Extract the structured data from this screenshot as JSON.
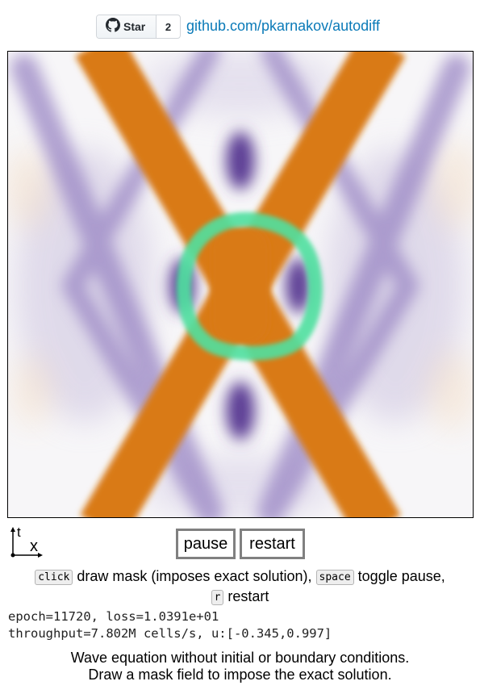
{
  "header": {
    "star_label": "Star",
    "star_count": "2",
    "repo_link": "github.com/pkarnakov/autodiff"
  },
  "icons": {
    "github": "github-octocat-icon",
    "axes": "t-x-axes-icon"
  },
  "axes": {
    "t_label": "t",
    "x_label": "x"
  },
  "controls": {
    "pause_label": "pause",
    "restart_label": "restart"
  },
  "help": {
    "key_click": "click",
    "click_desc": "draw mask (imposes exact solution),",
    "key_space": "space",
    "space_desc": "toggle pause,",
    "key_r": "r",
    "r_desc": "restart"
  },
  "stats": {
    "line1": "epoch=11720, loss=1.0391e+01",
    "line2": "throughput=7.802M cells/s, u:[-0.345,0.997]"
  },
  "description": {
    "line1": "Wave equation without initial or boundary conditions.",
    "line2": "Draw a mask field to impose the exact solution."
  },
  "colors": {
    "positive": "#d97a16",
    "negative": "#6b4ea0",
    "mask": "#4fe0a0",
    "link": "#0a7ab8"
  }
}
